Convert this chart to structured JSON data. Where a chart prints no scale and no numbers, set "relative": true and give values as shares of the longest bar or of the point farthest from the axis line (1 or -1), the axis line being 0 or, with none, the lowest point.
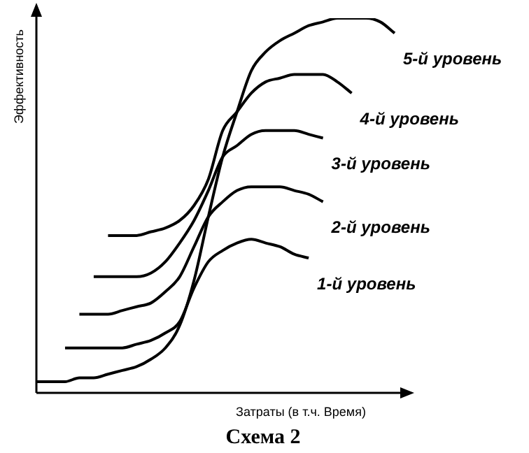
{
  "chart_data": {
    "type": "line",
    "relative": true,
    "title": "Схема 2",
    "xlabel": "Затраты (в т.ч. Время)",
    "ylabel": "Эффективность",
    "marker": "none",
    "legend": false,
    "categories": [
      null,
      null,
      null,
      null,
      null,
      null,
      null,
      null,
      null,
      null,
      null,
      null,
      null,
      null,
      null,
      null,
      null,
      null,
      null,
      null,
      null,
      null,
      null,
      null,
      null,
      null
    ],
    "series": [
      {
        "name": "5-й уровень",
        "color": "#000000",
        "values": [
          0.03,
          0.03,
          0.03,
          0.04,
          0.04,
          0.05,
          0.06,
          0.07,
          0.09,
          0.12,
          0.18,
          0.3,
          0.47,
          0.63,
          0.75,
          0.86,
          0.91,
          0.94,
          0.96,
          0.98,
          0.99,
          1.0,
          1.0,
          1.0,
          0.99,
          0.96
        ]
      },
      {
        "name": "4-й уровень",
        "color": "#000000",
        "values": [
          null,
          null,
          null,
          null,
          null,
          0.42,
          0.42,
          0.42,
          0.43,
          0.44,
          0.46,
          0.5,
          0.57,
          0.7,
          0.75,
          0.8,
          0.83,
          0.84,
          0.85,
          0.85,
          0.85,
          0.83,
          0.8,
          null,
          null,
          null
        ]
      },
      {
        "name": "3-й уровень",
        "color": "#000000",
        "values": [
          null,
          null,
          null,
          null,
          0.31,
          0.31,
          0.31,
          0.31,
          0.32,
          0.35,
          0.4,
          0.46,
          0.54,
          0.63,
          0.66,
          0.69,
          0.7,
          0.7,
          0.7,
          0.69,
          0.68,
          null,
          null,
          null,
          null,
          null
        ]
      },
      {
        "name": "2-й уровень",
        "color": "#000000",
        "values": [
          null,
          null,
          null,
          0.21,
          0.21,
          0.21,
          0.22,
          0.23,
          0.24,
          0.27,
          0.31,
          0.39,
          0.47,
          0.51,
          0.54,
          0.55,
          0.55,
          0.55,
          0.54,
          0.53,
          0.51,
          null,
          null,
          null,
          null,
          null
        ]
      },
      {
        "name": "1-й уровень",
        "color": "#000000",
        "values": [
          null,
          null,
          0.12,
          0.12,
          0.12,
          0.12,
          0.12,
          0.13,
          0.14,
          0.16,
          0.19,
          0.28,
          0.35,
          0.38,
          0.4,
          0.41,
          0.4,
          0.39,
          0.37,
          0.36,
          null,
          null,
          null,
          null,
          null,
          null
        ]
      }
    ]
  }
}
